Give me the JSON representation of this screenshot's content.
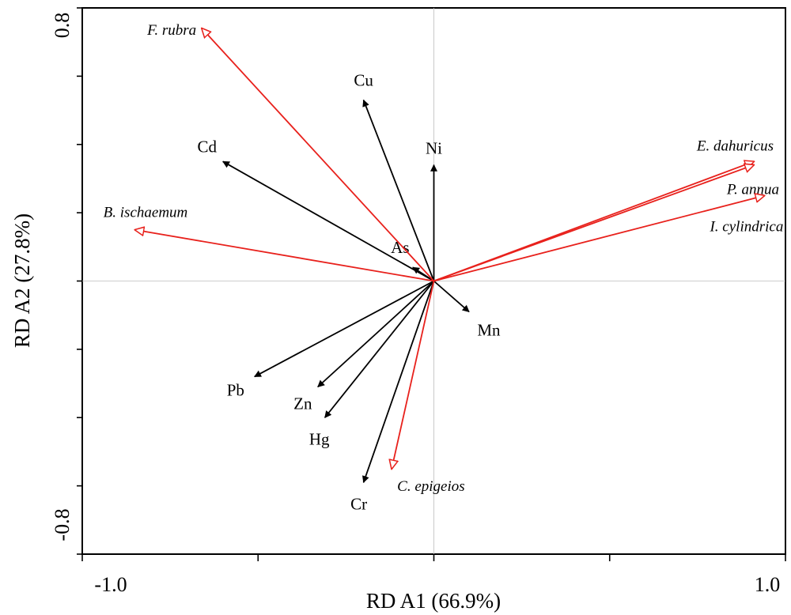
{
  "chart_data": {
    "type": "biplot",
    "xlabel": "RD A1 (66.9%)",
    "ylabel": "RD A2 (27.8%)",
    "xlim": [
      -1.0,
      1.0
    ],
    "ylim": [
      -0.8,
      0.8
    ],
    "x_tick_labels": [
      {
        "value": -1.0,
        "text": "-1.0"
      },
      {
        "value": 1.0,
        "text": "1.0"
      }
    ],
    "y_tick_labels": [
      {
        "value": -0.8,
        "text": "-0.8"
      },
      {
        "value": 0.8,
        "text": "0.8"
      }
    ],
    "environmental_vectors": {
      "color": "#000000",
      "items": [
        {
          "name": "Cu",
          "x": -0.2,
          "y": 0.53
        },
        {
          "name": "Ni",
          "x": 0.0,
          "y": 0.34
        },
        {
          "name": "Cd",
          "x": -0.6,
          "y": 0.35
        },
        {
          "name": "As",
          "x": -0.06,
          "y": 0.04
        },
        {
          "name": "Mn",
          "x": 0.1,
          "y": -0.09
        },
        {
          "name": "Pb",
          "x": -0.51,
          "y": -0.28
        },
        {
          "name": "Zn",
          "x": -0.33,
          "y": -0.31
        },
        {
          "name": "Hg",
          "x": -0.31,
          "y": -0.4
        },
        {
          "name": "Cr",
          "x": -0.2,
          "y": -0.59
        }
      ]
    },
    "species_vectors": {
      "color": "#e8211c",
      "items": [
        {
          "name": "F. rubra",
          "x": -0.66,
          "y": 0.74
        },
        {
          "name": "B. ischaemum",
          "x": -0.85,
          "y": 0.15
        },
        {
          "name": "E. dahuricus",
          "x": 0.91,
          "y": 0.35
        },
        {
          "name": "P. annua",
          "x": 0.91,
          "y": 0.34
        },
        {
          "name": "I. cylindrica",
          "x": 0.94,
          "y": 0.25
        },
        {
          "name": "C. epigeios",
          "x": -0.12,
          "y": -0.55
        }
      ]
    }
  }
}
